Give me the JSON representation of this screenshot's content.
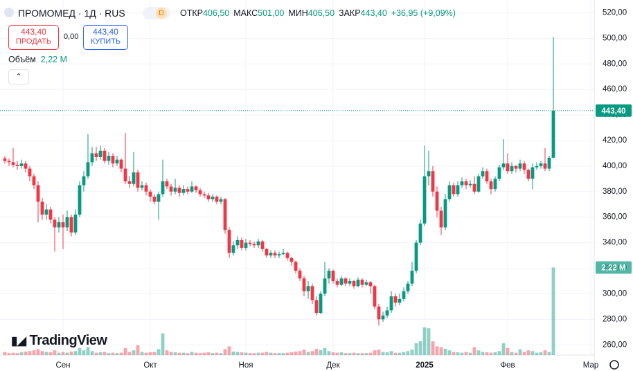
{
  "header": {
    "symbol": "ПРОМОМЕД · 1Д · RUS",
    "badge": "D",
    "ohlc": [
      {
        "label": "ОТКР",
        "value": "406,50"
      },
      {
        "label": "МАКС",
        "value": "501,00"
      },
      {
        "label": "МИН",
        "value": "406,50"
      },
      {
        "label": "ЗАКР",
        "value": "443,40"
      }
    ],
    "change": "+36,95 (+9,09%)"
  },
  "trade": {
    "sell_price": "443,40",
    "sell": "ПРОДАТЬ",
    "spread": "0,00",
    "buy_price": "443,40",
    "buy": "КУПИТЬ"
  },
  "volume_name": "Объём",
  "logo": "TradingView",
  "chart_data": {
    "type": "candlestick",
    "up_color": "#089981",
    "down_color": "#f23645",
    "ylim": [
      252,
      530
    ],
    "yticks": [
      {
        "value": 260,
        "label": "260,00"
      },
      {
        "value": 280,
        "label": "280,00"
      },
      {
        "value": 300,
        "label": "300,00"
      },
      {
        "value": 320,
        "label": "320,00"
      },
      {
        "value": 340,
        "label": "340,00"
      },
      {
        "value": 360,
        "label": "360,00"
      },
      {
        "value": 380,
        "label": "380,00"
      },
      {
        "value": 400,
        "label": "400,00"
      },
      {
        "value": 420,
        "label": "420,00"
      },
      {
        "value": 440,
        "label": "440,00"
      },
      {
        "value": 460,
        "label": "460,00"
      },
      {
        "value": 480,
        "label": "480,00"
      },
      {
        "value": 500,
        "label": "500,00"
      },
      {
        "value": 520,
        "label": "520,00"
      }
    ],
    "xlim": [
      0,
      132
    ],
    "xticks": [
      {
        "value": 14,
        "label": "Сен"
      },
      {
        "value": 35,
        "label": "Окт"
      },
      {
        "value": 58,
        "label": "Ноя"
      },
      {
        "value": 79,
        "label": "Дек"
      },
      {
        "value": 101,
        "label": "2025"
      },
      {
        "value": 121,
        "label": "Фев"
      },
      {
        "value": 141,
        "label": "Мар"
      }
    ],
    "last_price": 443.4,
    "last_price_label": "443,40",
    "volume_last_label": "2,22 M",
    "ohlc": [
      [
        406,
        408,
        402,
        404
      ],
      [
        404,
        406,
        400,
        403
      ],
      [
        403,
        414,
        399,
        401
      ],
      [
        401,
        404,
        397,
        400
      ],
      [
        400,
        405,
        398,
        402
      ],
      [
        402,
        404,
        395,
        398
      ],
      [
        398,
        400,
        388,
        392
      ],
      [
        392,
        394,
        382,
        385
      ],
      [
        385,
        388,
        356,
        372
      ],
      [
        372,
        375,
        358,
        362
      ],
      [
        362,
        370,
        358,
        366
      ],
      [
        366,
        368,
        355,
        358
      ],
      [
        358,
        360,
        333,
        352
      ],
      [
        352,
        360,
        348,
        356
      ],
      [
        356,
        362,
        335,
        352
      ],
      [
        352,
        365,
        349,
        360
      ],
      [
        360,
        362,
        345,
        348
      ],
      [
        348,
        366,
        346,
        362
      ],
      [
        362,
        388,
        360,
        385
      ],
      [
        385,
        396,
        380,
        392
      ],
      [
        392,
        425,
        390,
        403
      ],
      [
        403,
        415,
        400,
        410
      ],
      [
        410,
        415,
        404,
        407
      ],
      [
        407,
        416,
        405,
        412
      ],
      [
        412,
        414,
        402,
        404
      ],
      [
        404,
        411,
        401,
        408
      ],
      [
        408,
        410,
        399,
        402
      ],
      [
        402,
        408,
        400,
        405
      ],
      [
        405,
        406,
        395,
        398
      ],
      [
        398,
        426,
        386,
        388
      ],
      [
        388,
        392,
        383,
        386
      ],
      [
        386,
        411,
        384,
        395
      ],
      [
        395,
        397,
        380,
        383
      ],
      [
        383,
        388,
        381,
        385
      ],
      [
        385,
        387,
        377,
        380
      ],
      [
        380,
        382,
        372,
        376
      ],
      [
        376,
        378,
        370,
        372
      ],
      [
        372,
        380,
        358,
        378
      ],
      [
        378,
        405,
        376,
        388
      ],
      [
        388,
        390,
        382,
        384
      ],
      [
        384,
        386,
        377,
        380
      ],
      [
        380,
        390,
        378,
        383
      ],
      [
        383,
        385,
        376,
        379
      ],
      [
        379,
        385,
        377,
        382
      ],
      [
        382,
        384,
        378,
        380
      ],
      [
        380,
        388,
        379,
        384
      ],
      [
        384,
        385,
        379,
        381
      ],
      [
        381,
        383,
        376,
        378
      ],
      [
        378,
        380,
        375,
        377
      ],
      [
        377,
        379,
        372,
        374
      ],
      [
        374,
        378,
        372,
        376
      ],
      [
        376,
        377,
        370,
        372
      ],
      [
        372,
        376,
        370,
        374
      ],
      [
        374,
        375,
        347,
        350
      ],
      [
        350,
        352,
        328,
        332
      ],
      [
        332,
        341,
        330,
        338
      ],
      [
        338,
        345,
        335,
        342
      ],
      [
        342,
        344,
        334,
        336
      ],
      [
        336,
        343,
        334,
        340
      ],
      [
        340,
        342,
        337,
        339
      ],
      [
        339,
        341,
        336,
        338
      ],
      [
        338,
        343,
        336,
        341
      ],
      [
        341,
        342,
        333,
        335
      ],
      [
        335,
        336,
        328,
        330
      ],
      [
        330,
        334,
        328,
        332
      ],
      [
        332,
        334,
        328,
        330
      ],
      [
        330,
        333,
        328,
        331
      ],
      [
        331,
        335,
        330,
        332
      ],
      [
        332,
        333,
        326,
        328
      ],
      [
        328,
        329,
        322,
        325
      ],
      [
        325,
        326,
        316,
        318
      ],
      [
        318,
        320,
        310,
        312
      ],
      [
        312,
        314,
        298,
        302
      ],
      [
        302,
        310,
        296,
        306
      ],
      [
        306,
        308,
        292,
        295
      ],
      [
        295,
        298,
        283,
        285
      ],
      [
        285,
        302,
        284,
        300
      ],
      [
        300,
        325,
        298,
        312
      ],
      [
        312,
        320,
        308,
        318
      ],
      [
        318,
        319,
        308,
        310
      ],
      [
        310,
        312,
        305,
        307
      ],
      [
        307,
        314,
        306,
        312
      ],
      [
        312,
        313,
        306,
        308
      ],
      [
        308,
        312,
        306,
        310
      ],
      [
        310,
        311,
        304,
        306
      ],
      [
        306,
        313,
        305,
        311
      ],
      [
        311,
        312,
        305,
        307
      ],
      [
        307,
        311,
        306,
        309
      ],
      [
        309,
        310,
        300,
        306
      ],
      [
        306,
        307,
        288,
        290
      ],
      [
        290,
        292,
        275,
        280
      ],
      [
        280,
        286,
        278,
        283
      ],
      [
        283,
        290,
        281,
        287
      ],
      [
        287,
        302,
        285,
        298
      ],
      [
        298,
        300,
        290,
        293
      ],
      [
        293,
        300,
        291,
        296
      ],
      [
        296,
        305,
        294,
        302
      ],
      [
        302,
        310,
        300,
        308
      ],
      [
        308,
        325,
        306,
        318
      ],
      [
        318,
        342,
        316,
        340
      ],
      [
        340,
        358,
        338,
        355
      ],
      [
        355,
        416,
        353,
        392
      ],
      [
        392,
        412,
        385,
        396
      ],
      [
        396,
        400,
        376,
        380
      ],
      [
        380,
        384,
        360,
        365
      ],
      [
        365,
        368,
        346,
        352
      ],
      [
        352,
        378,
        350,
        374
      ],
      [
        374,
        388,
        372,
        385
      ],
      [
        385,
        387,
        376,
        378
      ],
      [
        378,
        388,
        376,
        385
      ],
      [
        385,
        391,
        383,
        388
      ],
      [
        388,
        390,
        382,
        385
      ],
      [
        385,
        389,
        383,
        386
      ],
      [
        386,
        392,
        378,
        380
      ],
      [
        380,
        394,
        379,
        392
      ],
      [
        392,
        399,
        390,
        396
      ],
      [
        396,
        398,
        386,
        388
      ],
      [
        388,
        390,
        378,
        382
      ],
      [
        382,
        392,
        380,
        390
      ],
      [
        390,
        401,
        388,
        399
      ],
      [
        399,
        421,
        397,
        402
      ],
      [
        402,
        410,
        394,
        396
      ],
      [
        396,
        403,
        394,
        400
      ],
      [
        400,
        401,
        395,
        398
      ],
      [
        398,
        405,
        396,
        402
      ],
      [
        402,
        404,
        394,
        397
      ],
      [
        397,
        398,
        388,
        390
      ],
      [
        390,
        402,
        382,
        399
      ],
      [
        399,
        403,
        397,
        400
      ],
      [
        400,
        404,
        398,
        402
      ],
      [
        402,
        414,
        396,
        398
      ],
      [
        398,
        408,
        396,
        406.5
      ],
      [
        406.5,
        501,
        406.5,
        443.4
      ]
    ],
    "volume": [
      0.08,
      0.05,
      0.06,
      0.05,
      0.07,
      0.09,
      0.1,
      0.12,
      0.15,
      0.1,
      0.08,
      0.07,
      0.12,
      0.06,
      0.08,
      0.06,
      0.09,
      0.1,
      0.18,
      0.12,
      0.2,
      0.1,
      0.06,
      0.07,
      0.08,
      0.05,
      0.06,
      0.05,
      0.06,
      0.18,
      0.08,
      0.12,
      0.25,
      0.08,
      0.06,
      0.07,
      0.08,
      0.15,
      0.55,
      0.12,
      0.08,
      0.07,
      0.06,
      0.06,
      0.05,
      0.08,
      0.06,
      0.05,
      0.06,
      0.07,
      0.05,
      0.06,
      0.05,
      0.15,
      0.22,
      0.09,
      0.08,
      0.07,
      0.06,
      0.05,
      0.05,
      0.06,
      0.06,
      0.08,
      0.06,
      0.05,
      0.05,
      0.05,
      0.06,
      0.07,
      0.09,
      0.1,
      0.14,
      0.08,
      0.1,
      0.16,
      0.13,
      0.18,
      0.1,
      0.07,
      0.06,
      0.07,
      0.05,
      0.05,
      0.06,
      0.05,
      0.05,
      0.05,
      0.06,
      0.12,
      0.14,
      0.08,
      0.07,
      0.1,
      0.06,
      0.06,
      0.08,
      0.1,
      0.14,
      0.3,
      0.35,
      0.7,
      0.68,
      0.35,
      0.22,
      0.2,
      0.16,
      0.12,
      0.08,
      0.07,
      0.06,
      0.08,
      0.06,
      0.2,
      0.12,
      0.08,
      0.07,
      0.06,
      0.07,
      0.1,
      0.3,
      0.18,
      0.08,
      0.06,
      0.15,
      0.08,
      0.12,
      0.1,
      0.06,
      0.07,
      0.12,
      0.08,
      2.22
    ]
  }
}
